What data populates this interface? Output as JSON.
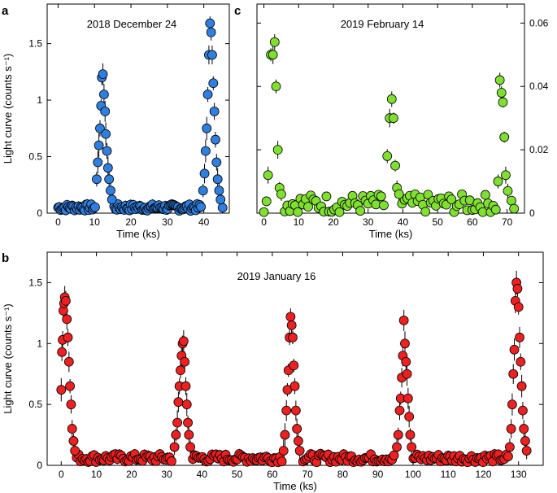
{
  "chart_data": [
    {
      "panel": "a",
      "type": "scatter",
      "title": "2018 December 24",
      "xlabel": "Time (ks)",
      "ylabel": "Light curve (counts s⁻¹)",
      "xlim": [
        -3,
        47
      ],
      "ylim": [
        0,
        1.85
      ],
      "xticks": [
        0,
        10,
        20,
        30,
        40
      ],
      "xtick_labels": [
        "0",
        "10",
        "20",
        "30",
        "40"
      ],
      "yticks": [
        0,
        0.5,
        1,
        1.5
      ],
      "ytick_labels": [
        "0",
        "0.5",
        "1",
        "1.5"
      ],
      "marker_color": "#2f7fe0",
      "quiescent_level": 0.05,
      "flares": [
        {
          "peak_time": 12.0,
          "peak_rate": 1.23,
          "points": [
            [
              10.6,
              0.3
            ],
            [
              10.9,
              0.45
            ],
            [
              11.2,
              0.6
            ],
            [
              11.5,
              0.75
            ],
            [
              11.8,
              0.95
            ],
            [
              12.0,
              1.2
            ],
            [
              12.3,
              1.23
            ],
            [
              12.6,
              1.05
            ],
            [
              12.9,
              0.9
            ],
            [
              13.1,
              0.7
            ],
            [
              13.4,
              0.55
            ],
            [
              13.7,
              0.4
            ],
            [
              14.0,
              0.3
            ],
            [
              14.4,
              0.2
            ],
            [
              14.8,
              0.12
            ]
          ]
        },
        {
          "peak_time": 41.6,
          "peak_rate": 1.68,
          "points": [
            [
              39.8,
              0.2
            ],
            [
              40.2,
              0.35
            ],
            [
              40.5,
              0.55
            ],
            [
              40.8,
              0.75
            ],
            [
              41.1,
              1.05
            ],
            [
              41.4,
              1.4
            ],
            [
              41.7,
              1.68
            ],
            [
              42.0,
              1.6
            ],
            [
              42.3,
              1.4
            ],
            [
              42.6,
              1.15
            ],
            [
              42.9,
              0.9
            ],
            [
              43.2,
              0.65
            ],
            [
              43.5,
              0.45
            ],
            [
              43.8,
              0.3
            ],
            [
              44.2,
              0.2
            ],
            [
              44.6,
              0.12
            ]
          ]
        }
      ]
    },
    {
      "panel": "c",
      "type": "scatter",
      "title": "2019 February 14",
      "xlabel": "Time (ks)",
      "ylabel": "",
      "xlim": [
        -2,
        75
      ],
      "ylim": [
        0,
        0.066
      ],
      "xticks": [
        0,
        10,
        20,
        30,
        40,
        50,
        60,
        70
      ],
      "xtick_labels": [
        "0",
        "10",
        "20",
        "30",
        "40",
        "50",
        "60",
        "70"
      ],
      "yticks": [
        0,
        0.02,
        0.04,
        0.06
      ],
      "ytick_labels": [
        "0",
        "0.02",
        "0.04",
        "0.06"
      ],
      "y_axis_side": "right",
      "marker_color": "#7fe030",
      "quiescent_level": 0.003,
      "flares": [
        {
          "peak_time": 3.0,
          "peak_rate": 0.054,
          "points": [
            [
              1.2,
              0.012
            ],
            [
              2.0,
              0.05
            ],
            [
              2.6,
              0.05
            ],
            [
              3.1,
              0.054
            ],
            [
              3.5,
              0.04
            ],
            [
              4.0,
              0.02
            ],
            [
              4.5,
              0.008
            ],
            [
              5.0,
              0.006
            ]
          ]
        },
        {
          "peak_time": 37.0,
          "peak_rate": 0.036,
          "points": [
            [
              35.5,
              0.018
            ],
            [
              36.2,
              0.03
            ],
            [
              36.8,
              0.036
            ],
            [
              37.3,
              0.03
            ],
            [
              37.8,
              0.015
            ],
            [
              38.3,
              0.008
            ],
            [
              38.9,
              0.006
            ]
          ]
        },
        {
          "peak_time": 68.5,
          "peak_rate": 0.042,
          "points": [
            [
              67.4,
              0.01
            ],
            [
              67.9,
              0.042
            ],
            [
              68.4,
              0.038
            ],
            [
              68.8,
              0.035
            ],
            [
              69.2,
              0.024
            ],
            [
              69.6,
              0.012
            ],
            [
              70.2,
              0.007
            ]
          ]
        }
      ]
    },
    {
      "panel": "b",
      "type": "scatter",
      "title": "2019 January 16",
      "xlabel": "Time (ks)",
      "ylabel": "Light curve (counts s⁻¹)",
      "xlim": [
        -4,
        137
      ],
      "ylim": [
        0,
        1.75
      ],
      "xticks": [
        0,
        10,
        20,
        30,
        40,
        50,
        60,
        70,
        80,
        90,
        100,
        110,
        120,
        130
      ],
      "xtick_labels": [
        "0",
        "10",
        "20",
        "30",
        "40",
        "50",
        "60",
        "70",
        "80",
        "90",
        "100",
        "110",
        "120",
        "130"
      ],
      "yticks": [
        0,
        0.5,
        1,
        1.5
      ],
      "ytick_labels": [
        "0",
        "0.5",
        "1",
        "1.5"
      ],
      "marker_color": "#ee2020",
      "quiescent_level": 0.06,
      "flares": [
        {
          "peak_time": 1.0,
          "peak_rate": 1.38,
          "points": [
            [
              0.0,
              0.62
            ],
            [
              0.2,
              0.93
            ],
            [
              0.4,
              1.03
            ],
            [
              0.6,
              1.27
            ],
            [
              0.8,
              1.33
            ],
            [
              1.0,
              1.38
            ],
            [
              1.3,
              1.35
            ],
            [
              1.6,
              1.2
            ],
            [
              1.9,
              1.05
            ],
            [
              2.2,
              0.85
            ],
            [
              2.5,
              0.65
            ],
            [
              2.8,
              0.5
            ],
            [
              3.1,
              0.3
            ],
            [
              3.5,
              0.2
            ],
            [
              3.9,
              0.12
            ]
          ]
        },
        {
          "peak_time": 34.7,
          "peak_rate": 1.02,
          "points": [
            [
              32.2,
              0.15
            ],
            [
              32.6,
              0.25
            ],
            [
              33.0,
              0.35
            ],
            [
              33.3,
              0.52
            ],
            [
              33.6,
              0.65
            ],
            [
              33.9,
              0.78
            ],
            [
              34.2,
              0.9
            ],
            [
              34.5,
              1.0
            ],
            [
              34.8,
              1.02
            ],
            [
              35.1,
              0.85
            ],
            [
              35.4,
              0.65
            ],
            [
              35.7,
              0.5
            ],
            [
              36.0,
              0.35
            ],
            [
              36.3,
              0.25
            ],
            [
              36.7,
              0.15
            ]
          ]
        },
        {
          "peak_time": 65.3,
          "peak_rate": 1.22,
          "points": [
            [
              63.2,
              0.12
            ],
            [
              63.6,
              0.25
            ],
            [
              64.0,
              0.45
            ],
            [
              64.3,
              0.62
            ],
            [
              64.6,
              0.78
            ],
            [
              64.9,
              1.05
            ],
            [
              65.2,
              1.22
            ],
            [
              65.5,
              1.15
            ],
            [
              65.8,
              1.05
            ],
            [
              66.1,
              0.82
            ],
            [
              66.4,
              0.65
            ],
            [
              66.7,
              0.45
            ],
            [
              67.0,
              0.3
            ],
            [
              67.4,
              0.2
            ],
            [
              67.8,
              0.12
            ]
          ]
        },
        {
          "peak_time": 97.5,
          "peak_rate": 1.19,
          "points": [
            [
              95.4,
              0.15
            ],
            [
              95.8,
              0.25
            ],
            [
              96.2,
              0.45
            ],
            [
              96.5,
              0.55
            ],
            [
              96.8,
              0.72
            ],
            [
              97.1,
              0.9
            ],
            [
              97.4,
              1.19
            ],
            [
              97.7,
              1.0
            ],
            [
              98.0,
              0.85
            ],
            [
              98.3,
              0.75
            ],
            [
              98.6,
              0.55
            ],
            [
              98.9,
              0.4
            ],
            [
              99.2,
              0.25
            ],
            [
              99.6,
              0.15
            ]
          ]
        },
        {
          "peak_time": 129.6,
          "peak_rate": 1.5,
          "points": [
            [
              127.5,
              0.15
            ],
            [
              127.9,
              0.3
            ],
            [
              128.2,
              0.5
            ],
            [
              128.5,
              0.75
            ],
            [
              128.8,
              0.95
            ],
            [
              129.1,
              1.35
            ],
            [
              129.4,
              1.5
            ],
            [
              129.7,
              1.45
            ],
            [
              130.0,
              1.3
            ],
            [
              130.3,
              1.05
            ],
            [
              130.6,
              0.85
            ],
            [
              130.9,
              0.65
            ],
            [
              131.2,
              0.45
            ],
            [
              131.5,
              0.3
            ],
            [
              131.9,
              0.2
            ],
            [
              132.3,
              0.12
            ]
          ]
        }
      ]
    }
  ]
}
